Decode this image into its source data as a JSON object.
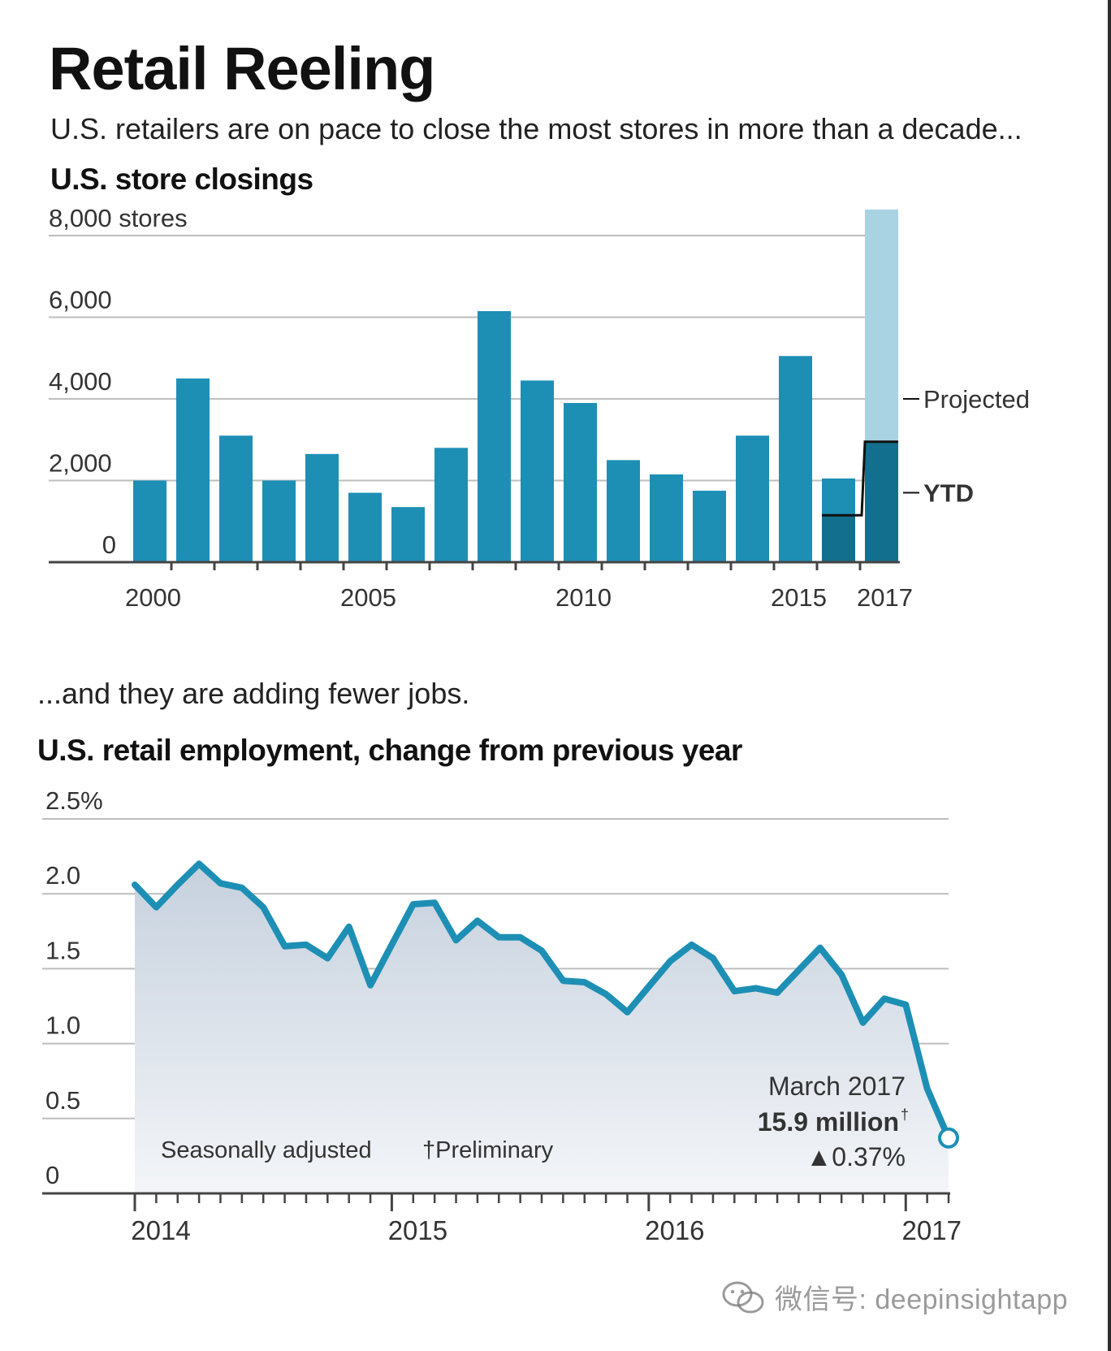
{
  "header": {
    "title": "Retail Reeling",
    "subtitle": "U.S. retailers are on pace to close the most stores in more than a decade..."
  },
  "colors": {
    "bar": "#1d8fb5",
    "bar_dark": "#126f8d",
    "projected": "#a9d3e2",
    "line": "#1d8fb5",
    "area_top": "#c9d3df",
    "area_bottom": "#eef1f5",
    "grid": "#bdbdbd",
    "axis": "#444444"
  },
  "store_chart": {
    "heading": "U.S. store closings",
    "ytick_labels": [
      "0",
      "2,000",
      "4,000",
      "6,000",
      "8,000 stores"
    ],
    "xtick_labels": [
      "2000",
      "2005",
      "2010",
      "2015",
      "2017"
    ],
    "projected_label": "Projected",
    "ytd_label": "YTD"
  },
  "jobs_section": {
    "intro": "...and they are adding fewer jobs."
  },
  "employment_chart": {
    "heading": "U.S. retail employment, change from previous year",
    "ytick_labels": [
      "0",
      "0.5",
      "1.0",
      "1.5",
      "2.0",
      "2.5%"
    ],
    "xtick_labels": [
      "2014",
      "2015",
      "2016",
      "2017"
    ],
    "note_seasonal": "Seasonally adjusted",
    "note_preliminary": "†Preliminary",
    "annotation_date": "March 2017",
    "annotation_value": "15.9 million",
    "annotation_dagger": "†",
    "annotation_change": "▲0.37%"
  },
  "watermark": {
    "text": "微信号: deepinsightapp",
    "icon": "wechat-icon"
  },
  "chart_data": [
    {
      "type": "bar",
      "title": "U.S. store closings",
      "ylabel": "stores",
      "ylim": [
        0,
        8000
      ],
      "yticks": [
        0,
        2000,
        4000,
        6000,
        8000
      ],
      "grid": true,
      "categories": [
        "2000",
        "2001",
        "2002",
        "2003",
        "2004",
        "2005",
        "2006",
        "2007",
        "2008",
        "2009",
        "2010",
        "2011",
        "2012",
        "2013",
        "2014",
        "2015",
        "2016",
        "2017"
      ],
      "values": [
        2000,
        4500,
        3100,
        2000,
        2650,
        1700,
        1350,
        2800,
        6150,
        4450,
        3900,
        2500,
        2150,
        1750,
        3100,
        5050,
        2050,
        2950
      ],
      "ytd": {
        "2016": 1150,
        "2017": 2950
      },
      "projected": {
        "2017": 8640
      },
      "legend": [
        "Projected",
        "YTD"
      ]
    },
    {
      "type": "area",
      "title": "U.S. retail employment, change from previous year",
      "ylabel": "%",
      "ylim": [
        0,
        2.5
      ],
      "yticks": [
        0,
        0.5,
        1.0,
        1.5,
        2.0,
        2.5
      ],
      "grid": true,
      "x": [
        "2014-01",
        "2014-02",
        "2014-03",
        "2014-04",
        "2014-05",
        "2014-06",
        "2014-07",
        "2014-08",
        "2014-09",
        "2014-10",
        "2014-11",
        "2014-12",
        "2015-01",
        "2015-02",
        "2015-03",
        "2015-04",
        "2015-05",
        "2015-06",
        "2015-07",
        "2015-08",
        "2015-09",
        "2015-10",
        "2015-11",
        "2015-12",
        "2016-01",
        "2016-02",
        "2016-03",
        "2016-04",
        "2016-05",
        "2016-06",
        "2016-07",
        "2016-08",
        "2016-09",
        "2016-10",
        "2016-11",
        "2016-12",
        "2017-01",
        "2017-02",
        "2017-03"
      ],
      "values": [
        2.06,
        1.91,
        2.06,
        2.2,
        2.07,
        2.04,
        1.91,
        1.65,
        1.66,
        1.57,
        1.78,
        1.39,
        1.66,
        1.93,
        1.94,
        1.69,
        1.82,
        1.71,
        1.71,
        1.62,
        1.42,
        1.41,
        1.33,
        1.21,
        1.38,
        1.55,
        1.66,
        1.57,
        1.35,
        1.37,
        1.34,
        1.49,
        1.64,
        1.46,
        1.14,
        1.3,
        1.26,
        0.7,
        0.37
      ]
    }
  ]
}
